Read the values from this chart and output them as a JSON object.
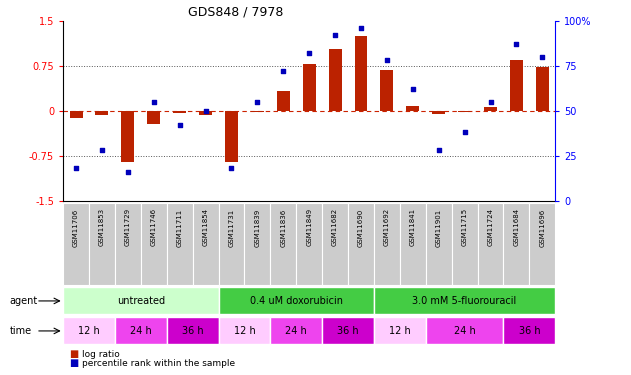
{
  "title": "GDS848 / 7978",
  "samples": [
    "GSM11706",
    "GSM11853",
    "GSM11729",
    "GSM11746",
    "GSM11711",
    "GSM11854",
    "GSM11731",
    "GSM11839",
    "GSM11836",
    "GSM11849",
    "GSM11682",
    "GSM11690",
    "GSM11692",
    "GSM11841",
    "GSM11901",
    "GSM11715",
    "GSM11724",
    "GSM11684",
    "GSM11696"
  ],
  "log_ratio": [
    -0.12,
    -0.08,
    -0.85,
    -0.22,
    -0.04,
    -0.08,
    -0.85,
    -0.03,
    0.32,
    0.78,
    1.02,
    1.25,
    0.68,
    0.08,
    -0.05,
    -0.02,
    0.06,
    0.85,
    0.73
  ],
  "percentile_rank": [
    18,
    28,
    16,
    55,
    42,
    50,
    18,
    55,
    72,
    82,
    92,
    96,
    78,
    62,
    28,
    38,
    55,
    87,
    80
  ],
  "ylim_left": [
    -1.5,
    1.5
  ],
  "ylim_right": [
    0,
    100
  ],
  "yticks_left": [
    -1.5,
    -0.75,
    0,
    0.75,
    1.5
  ],
  "yticks_right": [
    0,
    25,
    50,
    75,
    100
  ],
  "bar_color": "#bb2200",
  "dot_color": "#0000bb",
  "sample_bg_color": "#cccccc",
  "zero_line_color": "#cc2200",
  "dotted_line_color": "#555555",
  "agent_groups": [
    {
      "label": "untreated",
      "start": 0,
      "end": 6,
      "color": "#ccffcc"
    },
    {
      "label": "0.4 uM doxorubicin",
      "start": 6,
      "end": 12,
      "color": "#44cc44"
    },
    {
      "label": "3.0 mM 5-fluorouracil",
      "start": 12,
      "end": 19,
      "color": "#44cc44"
    }
  ],
  "time_groups": [
    {
      "label": "12 h",
      "start": 0,
      "end": 2,
      "color": "#ffaaff"
    },
    {
      "label": "24 h",
      "start": 2,
      "end": 4,
      "color": "#ee44ee"
    },
    {
      "label": "36 h",
      "start": 4,
      "end": 6,
      "color": "#cc00cc"
    },
    {
      "label": "12 h",
      "start": 6,
      "end": 8,
      "color": "#ffaaff"
    },
    {
      "label": "24 h",
      "start": 8,
      "end": 10,
      "color": "#ee44ee"
    },
    {
      "label": "36 h",
      "start": 10,
      "end": 12,
      "color": "#cc00cc"
    },
    {
      "label": "12 h",
      "start": 12,
      "end": 14,
      "color": "#ffaaff"
    },
    {
      "label": "24 h",
      "start": 14,
      "end": 17,
      "color": "#ee44ee"
    },
    {
      "label": "36 h",
      "start": 17,
      "end": 19,
      "color": "#cc00cc"
    }
  ]
}
